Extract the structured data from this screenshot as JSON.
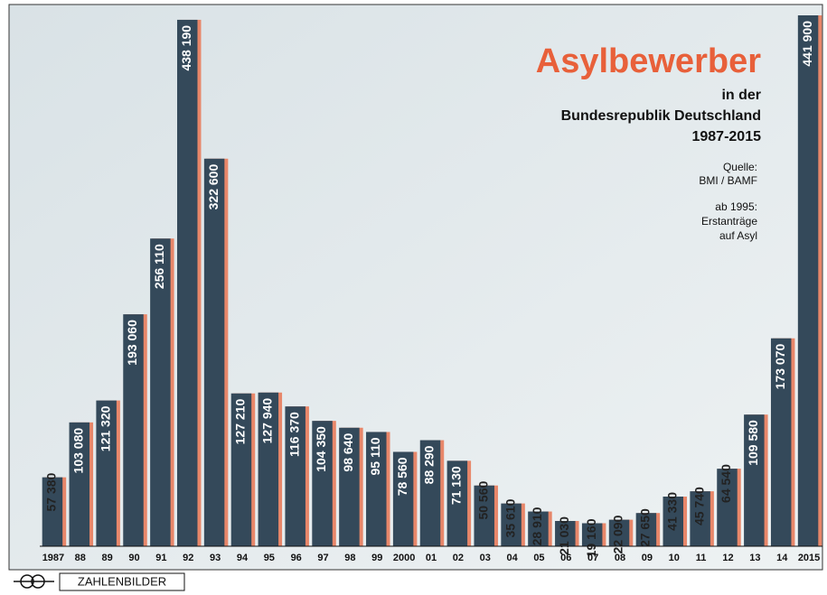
{
  "chart_data": {
    "type": "bar",
    "title": "Asylbewerber",
    "subtitle": [
      "in der",
      "Bundesrepublik Deutschland",
      "1987-2015"
    ],
    "source": [
      "Quelle:",
      "BMI / BAMF"
    ],
    "note": [
      "ab 1995:",
      "Erstanträge",
      "auf Asyl"
    ],
    "brand": "ZAHLENBILDER",
    "categories": [
      "1987",
      "88",
      "89",
      "90",
      "91",
      "92",
      "93",
      "94",
      "95",
      "96",
      "97",
      "98",
      "99",
      "2000",
      "01",
      "02",
      "03",
      "04",
      "05",
      "06",
      "07",
      "08",
      "09",
      "10",
      "11",
      "12",
      "13",
      "14",
      "2015"
    ],
    "values": [
      57380,
      103080,
      121320,
      193060,
      256110,
      438190,
      322600,
      127210,
      127940,
      116370,
      104350,
      98640,
      95110,
      78560,
      88290,
      71130,
      50560,
      35610,
      28910,
      21030,
      19160,
      22090,
      27650,
      41330,
      45740,
      64540,
      109580,
      173070,
      441900
    ],
    "value_labels": [
      "57 380",
      "103 080",
      "121 320",
      "193 060",
      "256 110",
      "438 190",
      "322 600",
      "127 210",
      "127 940",
      "116 370",
      "104 350",
      "98 640",
      "95 110",
      "78 560",
      "88 290",
      "71 130",
      "50 560",
      "35 610",
      "28 910",
      "21 030",
      "19 160",
      "22 090",
      "27 650",
      "41 330",
      "45 740",
      "64 540",
      "109 580",
      "173 070",
      "441 900"
    ],
    "color": "#34495a"
  }
}
